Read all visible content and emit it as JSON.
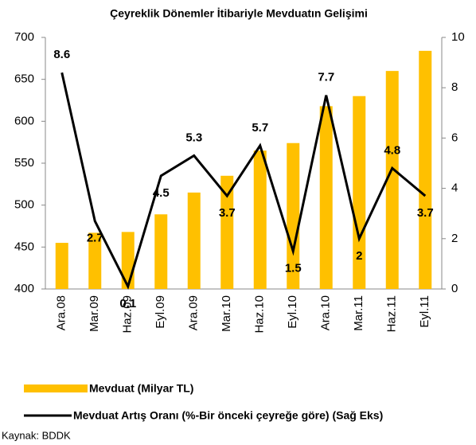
{
  "chart_data": {
    "type": "bar",
    "title": "Çeyreklik Dönemler İtibariyle Mevduatın Gelişimi",
    "categories": [
      "Ara.08",
      "Mar.09",
      "Haz.09",
      "Eyl.09",
      "Ara.09",
      "Mar.10",
      "Haz.10",
      "Eyl.10",
      "Ara.10",
      "Mar.11",
      "Haz.11",
      "Eyl.11"
    ],
    "series": [
      {
        "name": "Mevduat (Milyar TL)",
        "type": "bar",
        "color": "#ffc000",
        "values": [
          455,
          467,
          468,
          489,
          515,
          535,
          565,
          574,
          618,
          630,
          660,
          684
        ]
      },
      {
        "name": "Mevduat Artış Oranı (%-Bir önceki çeyreğe göre) (Sağ Eks)",
        "type": "line",
        "axis": "y2",
        "color": "#000000",
        "values": [
          8.6,
          2.7,
          0.1,
          4.5,
          5.3,
          3.7,
          5.7,
          1.5,
          7.7,
          2,
          4.8,
          3.7
        ]
      }
    ],
    "ylim": [
      400,
      700
    ],
    "yticks": [
      400,
      450,
      500,
      550,
      600,
      650,
      700
    ],
    "y2lim": [
      0,
      10
    ],
    "y2ticks": [
      0,
      2,
      4,
      6,
      8,
      10
    ],
    "source": "Kaynak: BDDK"
  }
}
